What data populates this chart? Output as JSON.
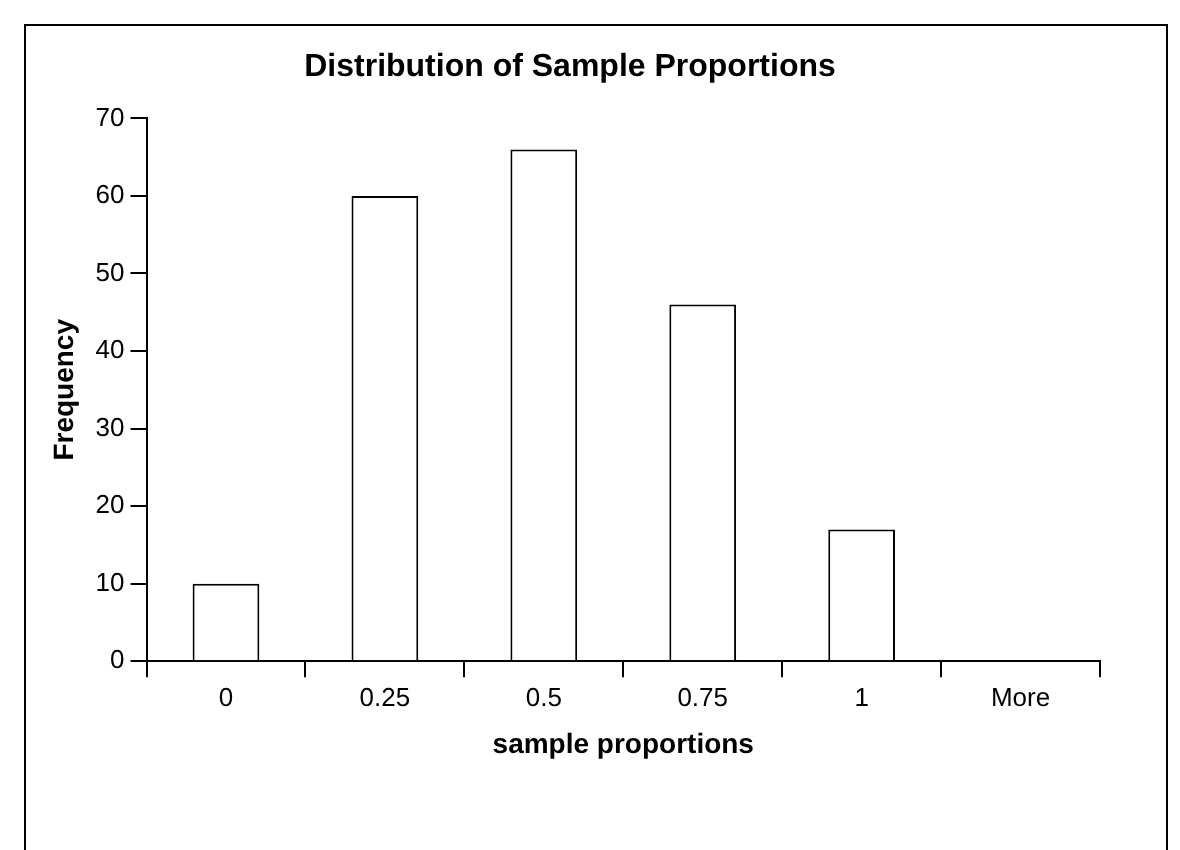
{
  "chart_data": {
    "type": "bar",
    "title": "Distribution of Sample Proportions",
    "xlabel": "sample proportions",
    "ylabel": "Frequency",
    "categories": [
      "0",
      "0.25",
      "0.5",
      "0.75",
      "1",
      "More"
    ],
    "values": [
      10,
      60,
      66,
      46,
      17,
      0
    ],
    "color": "#ffffff",
    "ylim": [
      0,
      70
    ],
    "yticks": [
      0,
      10,
      20,
      30,
      40,
      50,
      60,
      70
    ],
    "grid": false,
    "legend": false
  }
}
